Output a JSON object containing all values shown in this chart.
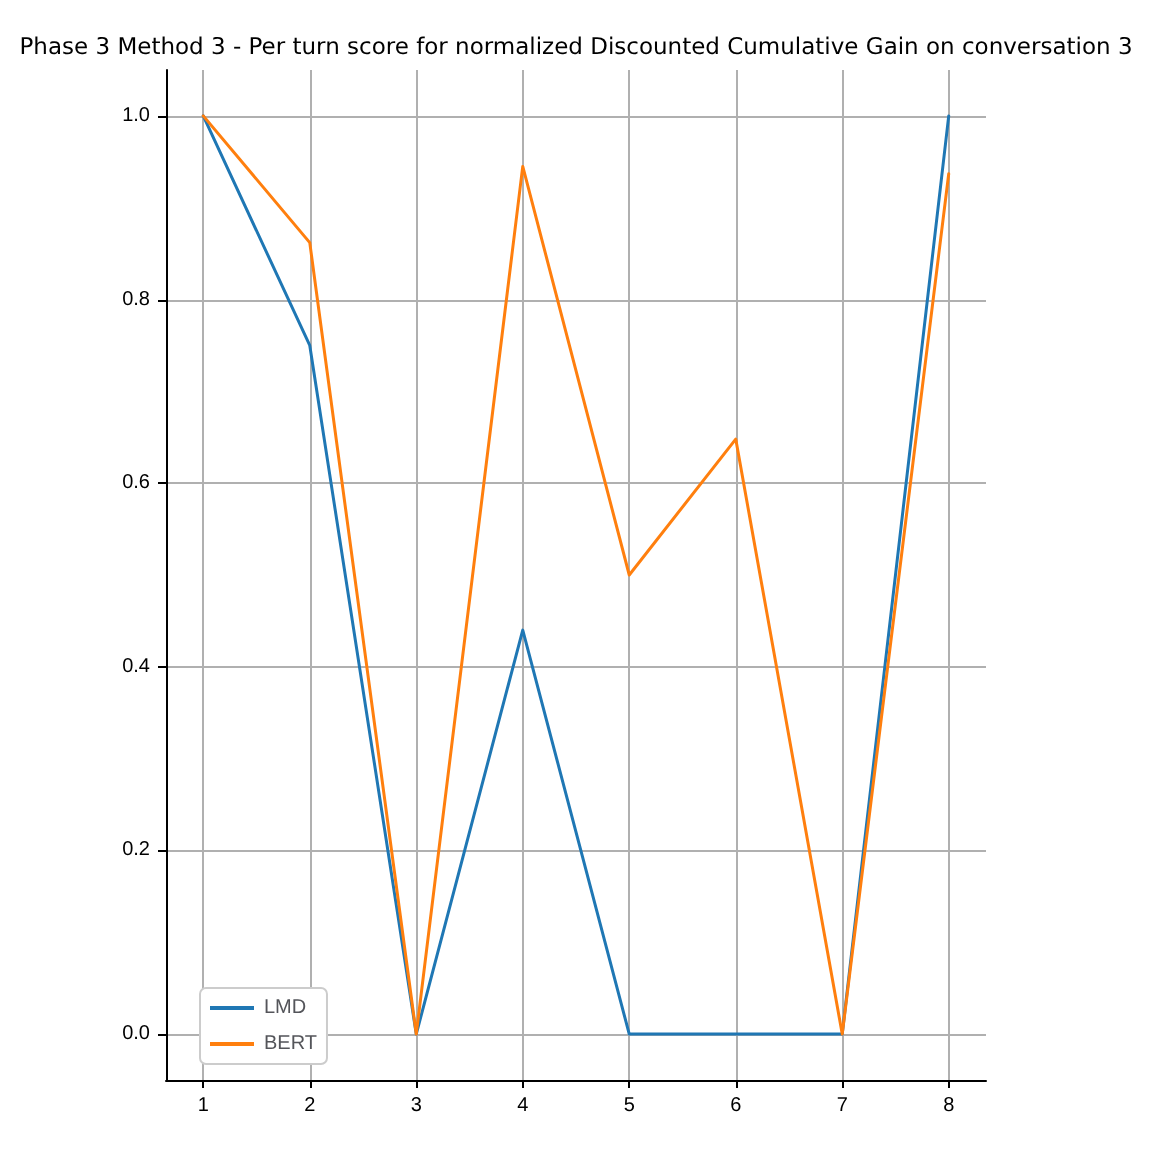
{
  "chart_data": {
    "type": "line",
    "title": "Phase 3 Method 3 - Per turn score for normalized Discounted Cumulative Gain on conversation 3",
    "x": [
      1,
      2,
      3,
      4,
      5,
      6,
      7,
      8
    ],
    "series": [
      {
        "name": "LMD",
        "color": "#1f77b4",
        "values": [
          1.0,
          0.75,
          0,
          0.44,
          0,
          0,
          0,
          1.0
        ]
      },
      {
        "name": "BERT",
        "color": "#ff7f0e",
        "values": [
          1.0,
          0.862,
          0,
          0.945,
          0.5,
          0.648,
          0,
          0.937
        ]
      }
    ],
    "xlim": [
      0.65,
      8.35
    ],
    "xticks": [
      1,
      2,
      3,
      4,
      5,
      6,
      7,
      8
    ],
    "ylim": [
      -0.05,
      1.05
    ],
    "yticks": [
      {
        "value": 0,
        "label": "0.0"
      },
      {
        "value": 0.2,
        "label": "0.2"
      },
      {
        "value": 0.4,
        "label": "0.4"
      },
      {
        "value": 0.6,
        "label": "0.6"
      },
      {
        "value": 0.8,
        "label": "0.8"
      },
      {
        "value": 1,
        "label": "1.0"
      }
    ],
    "grid": true,
    "legend": "bottom left",
    "marker": "none",
    "line_style": "solid"
  }
}
